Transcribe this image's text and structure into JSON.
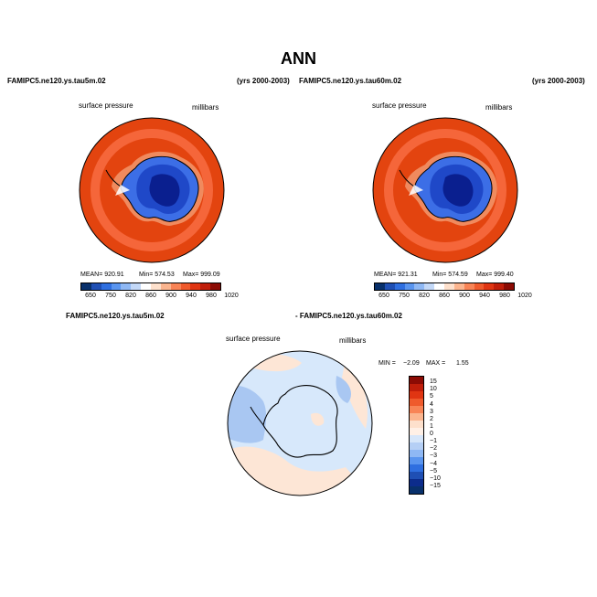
{
  "page": {
    "title": "ANN"
  },
  "panel1": {
    "case": "FAMIPC5.ne120.ys.tau5m.02",
    "years": "(yrs 2000-2003)",
    "variable": "surface pressure",
    "units": "millibars",
    "mean": "MEAN= 920.91",
    "min": "Min= 574.53",
    "max": "Max= 999.09"
  },
  "panel2": {
    "case": "FAMIPC5.ne120.ys.tau60m.02",
    "years": "(yrs 2000-2003)",
    "variable": "surface pressure",
    "units": "millibars",
    "mean": "MEAN= 921.31",
    "min": "Min= 574.59",
    "max": "Max= 999.40"
  },
  "diff": {
    "case_a": "FAMIPC5.ne120.ys.tau5m.02",
    "case_b": "- FAMIPC5.ne120.ys.tau60m.02",
    "variable": "surface pressure",
    "units": "millibars",
    "min_label": "MIN =",
    "min_value": "−2.09",
    "max_label": "MAX =",
    "max_value": "1.55"
  },
  "colorbar_abs": {
    "ticks": [
      "650",
      "750",
      "820",
      "860",
      "900",
      "940",
      "980",
      "1020"
    ],
    "colors": [
      "#08306b",
      "#1f4fb4",
      "#2f6fe0",
      "#5a95ef",
      "#8fb8f4",
      "#c3d8f7",
      "#ffffff",
      "#fde0cc",
      "#fbb58f",
      "#f88456",
      "#ef5a2c",
      "#e03512",
      "#c01e0a",
      "#8c0b04"
    ]
  },
  "colorbar_diff": {
    "ticks": [
      "15",
      "10",
      "5",
      "4",
      "3",
      "2",
      "1",
      "0",
      "−1",
      "−2",
      "−3",
      "−4",
      "−5",
      "−10",
      "−15"
    ],
    "colors": [
      "#8c0b04",
      "#c01e0a",
      "#e03512",
      "#ef5a2c",
      "#f88456",
      "#fbb58f",
      "#fde0cc",
      "#fff0e6",
      "#d6e6fa",
      "#b5cff5",
      "#8fb8f4",
      "#5a95ef",
      "#2f6fe0",
      "#1f4fb4",
      "#0c2c8c",
      "#08306b"
    ]
  },
  "map_colors": {
    "ocean": "#e3440f",
    "ring": "#f5663a",
    "coast_band": "#f08a5e",
    "ice_high": "#3c6ee6",
    "ice_mid": "#1f48c8",
    "ice_low": "#0a1f8f",
    "diff_bg": "#d7e8fb",
    "diff_pos": "#fde6d6",
    "diff_neg": "#a9c7f2"
  }
}
